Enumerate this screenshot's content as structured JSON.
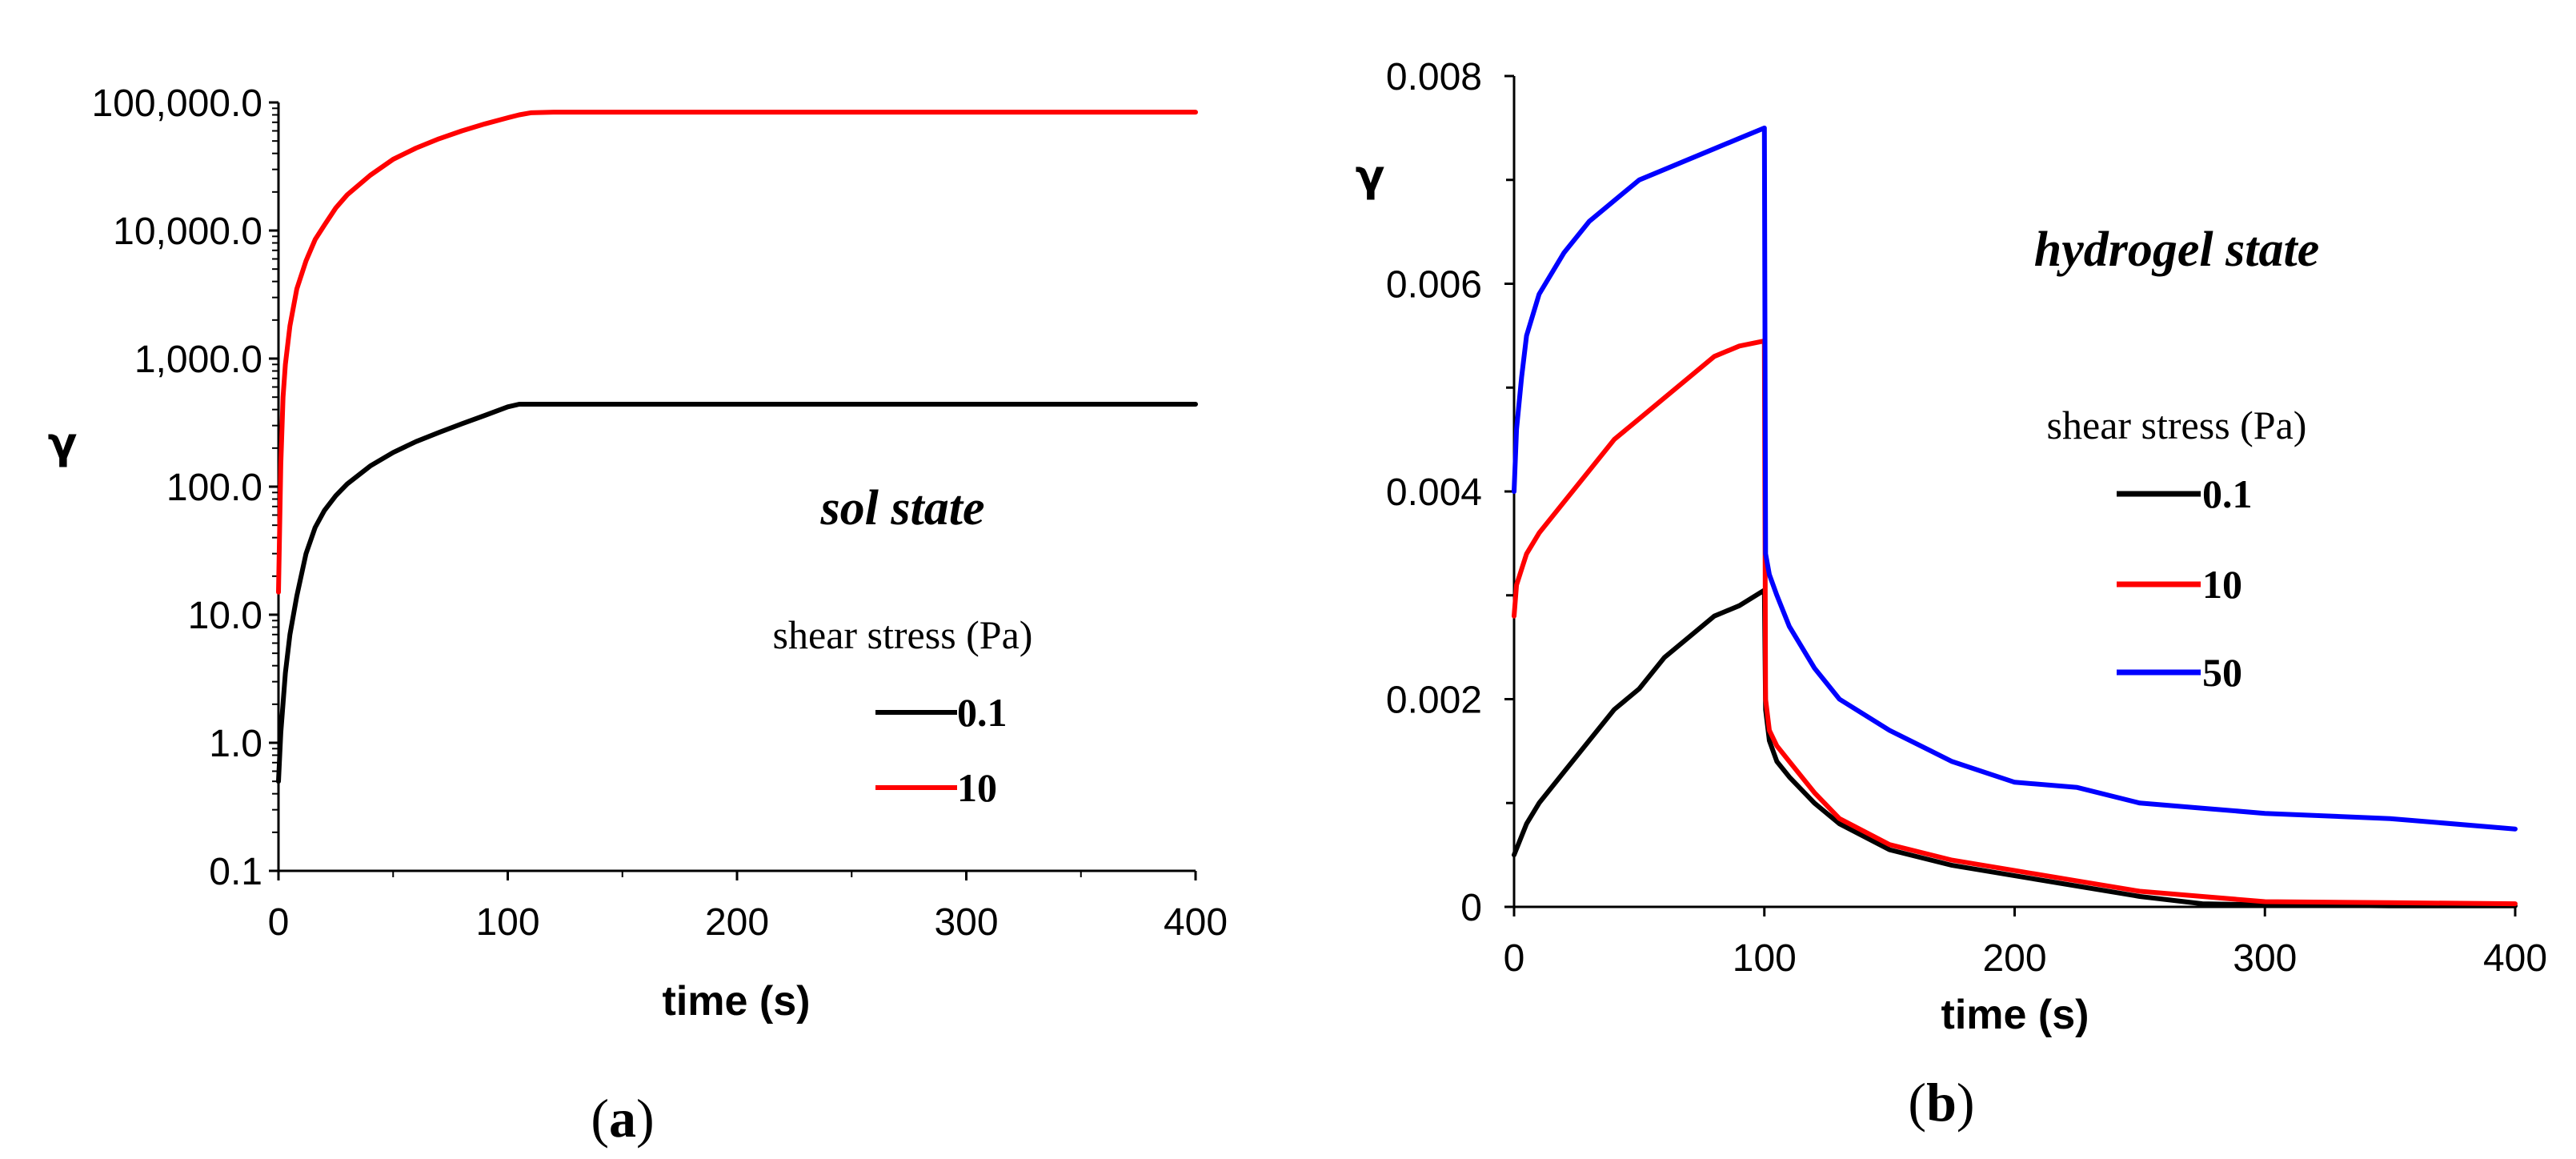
{
  "chart_data": [
    {
      "type": "line",
      "panel_label": {
        "open": "(",
        "letter": "a",
        "close": ")"
      },
      "state_label": "sol state",
      "xlabel": "time (s)",
      "ylabel": "γ",
      "yscale": "log",
      "xlim": [
        0,
        400
      ],
      "ylim": [
        0.1,
        100000
      ],
      "xticks": [
        0,
        100,
        200,
        300,
        400
      ],
      "xtick_labels": [
        "0",
        "100",
        "200",
        "300",
        "400"
      ],
      "yticks": [
        0.1,
        1,
        10,
        100,
        1000,
        10000,
        100000
      ],
      "ytick_labels": [
        "0.1",
        "1.0",
        "10.0",
        "100.0",
        "1,000.0",
        "10,000.0",
        "100,000.0"
      ],
      "grid": false,
      "legend": {
        "title": "shear stress (Pa)",
        "placement": "right"
      },
      "series": [
        {
          "name": "0.1",
          "color": "#000000",
          "x": [
            0,
            1,
            3,
            5,
            8,
            12,
            16,
            20,
            25,
            30,
            40,
            50,
            60,
            70,
            80,
            90,
            100,
            105,
            120,
            200,
            300,
            400
          ],
          "y": [
            0.5,
            1.2,
            3.5,
            7,
            14,
            30,
            48,
            65,
            85,
            105,
            145,
            185,
            225,
            265,
            310,
            360,
            420,
            440,
            440,
            440,
            440,
            440
          ]
        },
        {
          "name": "10",
          "color": "#ff0000",
          "x": [
            0,
            1,
            2,
            3,
            5,
            8,
            12,
            16,
            20,
            25,
            30,
            40,
            50,
            60,
            70,
            80,
            90,
            100,
            105,
            110,
            120,
            200,
            300,
            400
          ],
          "y": [
            15,
            150,
            500,
            900,
            1800,
            3500,
            5800,
            8500,
            11000,
            15000,
            19000,
            27000,
            36000,
            44000,
            52000,
            60000,
            68000,
            76000,
            80000,
            83000,
            84000,
            84000,
            84000,
            84000
          ]
        }
      ]
    },
    {
      "type": "line",
      "panel_label": {
        "open": "(",
        "letter": "b",
        "close": ")"
      },
      "state_label": "hydrogel state",
      "xlabel": "time (s)",
      "ylabel": "γ",
      "yscale": "linear",
      "xlim": [
        0,
        400
      ],
      "ylim": [
        0,
        0.008
      ],
      "xticks": [
        0,
        100,
        200,
        300,
        400
      ],
      "xtick_labels": [
        "0",
        "100",
        "200",
        "300",
        "400"
      ],
      "yticks": [
        0,
        0.002,
        0.004,
        0.006,
        0.008
      ],
      "ytick_labels": [
        "0",
        "0.002",
        "0.004",
        "0.006",
        "0.008"
      ],
      "grid": false,
      "legend": {
        "title": "shear stress (Pa)",
        "placement": "right"
      },
      "series": [
        {
          "name": "0.1",
          "color": "#000000",
          "x": [
            0,
            5,
            10,
            20,
            30,
            40,
            50,
            60,
            70,
            80,
            90,
            100,
            100.5,
            102,
            105,
            110,
            120,
            130,
            150,
            175,
            200,
            225,
            250,
            275,
            300,
            350,
            400
          ],
          "y": [
            0.0005,
            0.0008,
            0.001,
            0.0013,
            0.0016,
            0.0019,
            0.0021,
            0.0024,
            0.0026,
            0.0028,
            0.0029,
            0.00305,
            0.0019,
            0.0016,
            0.0014,
            0.00125,
            0.001,
            0.0008,
            0.00055,
            0.0004,
            0.0003,
            0.0002,
            0.0001,
            3e-05,
            2e-05,
            1e-05,
            1e-05
          ]
        },
        {
          "name": "10",
          "color": "#ff0000",
          "x": [
            0,
            1,
            5,
            10,
            20,
            30,
            40,
            50,
            60,
            70,
            80,
            90,
            100,
            100.5,
            102,
            105,
            110,
            120,
            130,
            150,
            175,
            200,
            225,
            250,
            275,
            300,
            350,
            400
          ],
          "y": [
            0.0028,
            0.0031,
            0.0034,
            0.0036,
            0.0039,
            0.0042,
            0.0045,
            0.0047,
            0.0049,
            0.0051,
            0.0053,
            0.0054,
            0.00545,
            0.002,
            0.0017,
            0.00155,
            0.0014,
            0.0011,
            0.00085,
            0.0006,
            0.00045,
            0.00035,
            0.00025,
            0.00015,
            0.0001,
            5e-05,
            4e-05,
            3e-05
          ]
        },
        {
          "name": "50",
          "color": "#0000ff",
          "x": [
            0,
            1,
            3,
            5,
            10,
            20,
            30,
            40,
            50,
            60,
            70,
            80,
            90,
            100,
            100.5,
            102,
            105,
            110,
            120,
            130,
            150,
            175,
            200,
            225,
            250,
            275,
            300,
            350,
            400
          ],
          "y": [
            0.004,
            0.0046,
            0.0051,
            0.0055,
            0.0059,
            0.0063,
            0.0066,
            0.0068,
            0.007,
            0.0071,
            0.0072,
            0.0073,
            0.0074,
            0.0075,
            0.0034,
            0.0032,
            0.003,
            0.0027,
            0.0023,
            0.002,
            0.0017,
            0.0014,
            0.0012,
            0.00115,
            0.001,
            0.00095,
            0.0009,
            0.00085,
            0.00075
          ]
        }
      ]
    }
  ]
}
